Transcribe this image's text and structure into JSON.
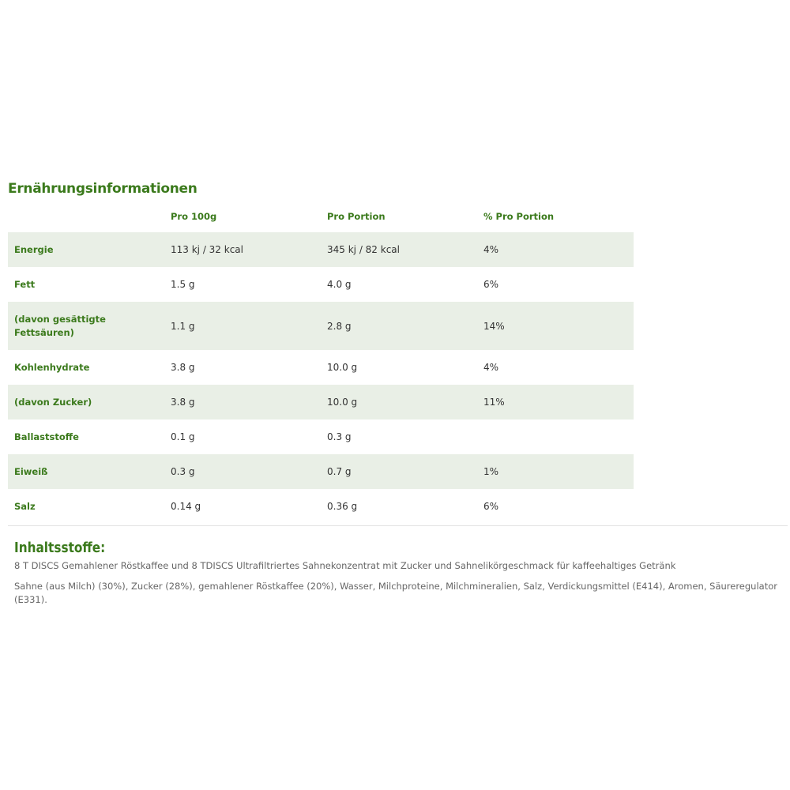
{
  "title": "Ernährungsinformationen",
  "columns": [
    "",
    "Pro 100g",
    "Pro Portion",
    "% Pro Portion"
  ],
  "rows": [
    {
      "label": "Energie",
      "per100": "113 kj / 32 kcal",
      "portion": "345 kj / 82 kcal",
      "pct": "4%"
    },
    {
      "label": "Fett",
      "per100": "1.5 g",
      "portion": "4.0 g",
      "pct": "6%"
    },
    {
      "label": "(davon gesättigte Fettsäuren)",
      "per100": "1.1 g",
      "portion": "2.8 g",
      "pct": "14%"
    },
    {
      "label": "Kohlenhydrate",
      "per100": "3.8 g",
      "portion": "10.0 g",
      "pct": "4%"
    },
    {
      "label": "(davon Zucker)",
      "per100": "3.8 g",
      "portion": "10.0 g",
      "pct": "11%"
    },
    {
      "label": "Ballaststoffe",
      "per100": "0.1 g",
      "portion": "0.3 g",
      "pct": ""
    },
    {
      "label": "Eiweiß",
      "per100": "0.3 g",
      "portion": "0.7 g",
      "pct": "1%"
    },
    {
      "label": "Salz",
      "per100": "0.14 g",
      "portion": "0.36 g",
      "pct": "6%"
    }
  ],
  "ingredients": {
    "title": "Inhaltsstoffe:",
    "description": "8 T DISCS Gemahlener Röstkaffee und 8 TDISCS Ultrafiltriertes Sahnekonzentrat mit Zucker und Sahnelikörgeschmack für kaffeehaltiges Getränk",
    "list": "Sahne (aus Milch) (30%), Zucker (28%), gemahlener Röstkaffee (20%), Wasser, Milchproteine, Milchmineralien, Salz, Verdickungsmittel (E414), Aromen, Säureregulator (E331)."
  },
  "colors": {
    "accent": "#3b7a1c",
    "row_alt": "#e9efe6",
    "text": "#333333"
  }
}
